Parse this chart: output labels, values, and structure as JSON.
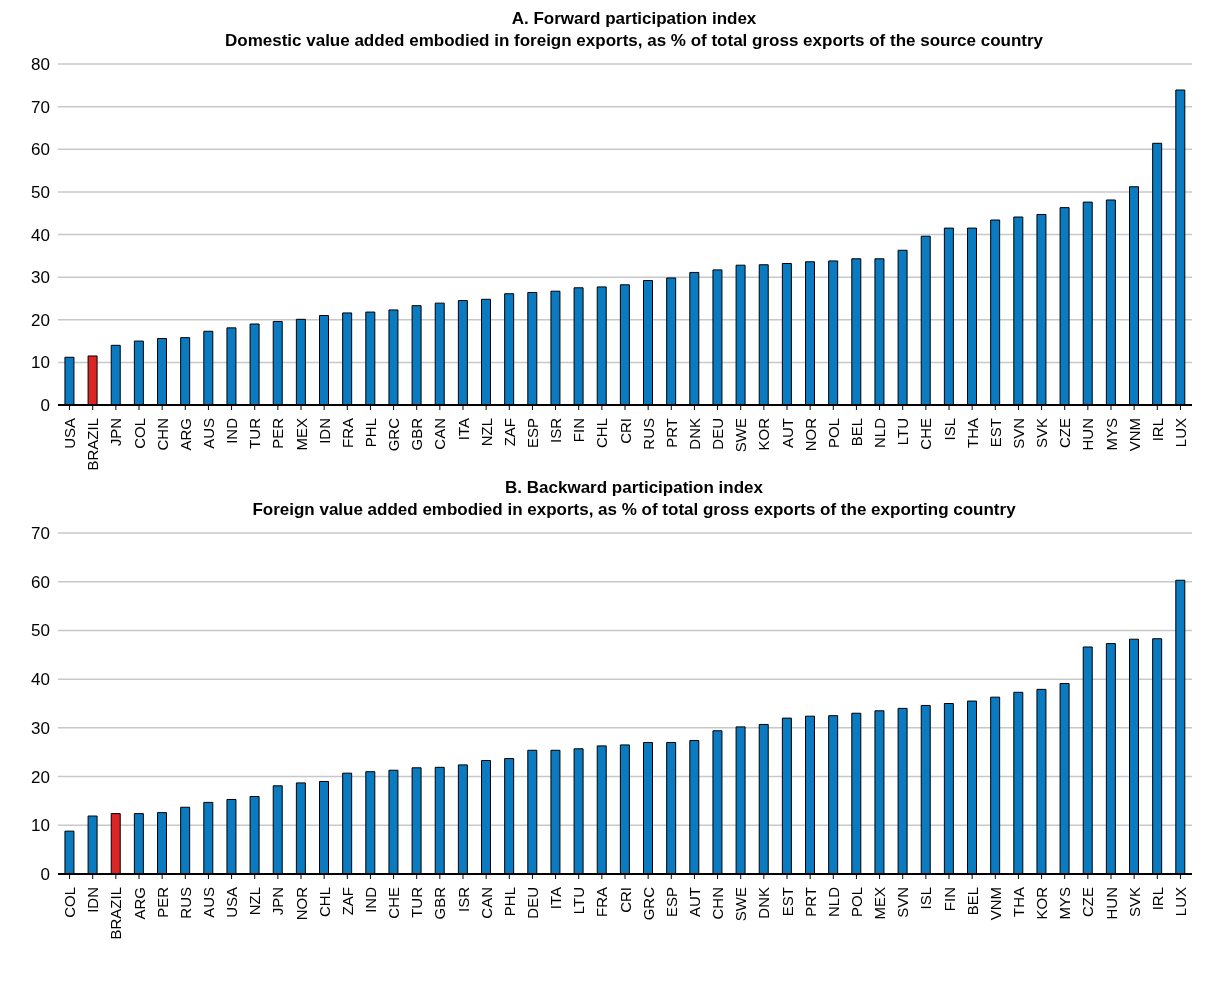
{
  "chart_data": [
    {
      "type": "bar",
      "title": "A. Forward participation index",
      "subtitle": "Domestic value added embodied in foreign exports, as % of total gross exports of the source country",
      "categories": [
        "USA",
        "BRAZIL",
        "JPN",
        "COL",
        "CHN",
        "ARG",
        "AUS",
        "IND",
        "TUR",
        "PER",
        "MEX",
        "IDN",
        "FRA",
        "PHL",
        "GRC",
        "GBR",
        "CAN",
        "ITA",
        "NZL",
        "ZAF",
        "ESP",
        "ISR",
        "FIN",
        "CHL",
        "CRI",
        "RUS",
        "PRT",
        "DNK",
        "DEU",
        "SWE",
        "KOR",
        "AUT",
        "NOR",
        "POL",
        "BEL",
        "NLD",
        "LTU",
        "CHE",
        "ISL",
        "THA",
        "EST",
        "SVN",
        "SVK",
        "CZE",
        "HUN",
        "MYS",
        "VNM",
        "IRL",
        "LUX"
      ],
      "values": [
        11.2,
        11.5,
        14,
        15,
        15.6,
        15.8,
        17.3,
        18.1,
        19,
        19.6,
        20.1,
        21,
        21.6,
        21.8,
        22.3,
        23.3,
        23.9,
        24.5,
        24.8,
        26.1,
        26.4,
        26.7,
        27.5,
        27.7,
        28.2,
        29.2,
        29.8,
        31.1,
        31.7,
        32.8,
        32.9,
        33.2,
        33.6,
        33.8,
        34.3,
        34.3,
        36.3,
        39.6,
        41.5,
        41.5,
        43.4,
        44.1,
        44.7,
        46.3,
        47.6,
        48.1,
        51.2,
        61.4,
        73.9
      ],
      "colors": [
        "#0a7bc1",
        "#dc2626",
        "#0a7bc1",
        "#0a7bc1",
        "#0a7bc1",
        "#0a7bc1",
        "#0a7bc1",
        "#0a7bc1",
        "#0a7bc1",
        "#0a7bc1",
        "#0a7bc1",
        "#0a7bc1",
        "#0a7bc1",
        "#0a7bc1",
        "#0a7bc1",
        "#0a7bc1",
        "#0a7bc1",
        "#0a7bc1",
        "#0a7bc1",
        "#0a7bc1",
        "#0a7bc1",
        "#0a7bc1",
        "#0a7bc1",
        "#0a7bc1",
        "#0a7bc1",
        "#0a7bc1",
        "#0a7bc1",
        "#0a7bc1",
        "#0a7bc1",
        "#0a7bc1",
        "#0a7bc1",
        "#0a7bc1",
        "#0a7bc1",
        "#0a7bc1",
        "#0a7bc1",
        "#0a7bc1",
        "#0a7bc1",
        "#0a7bc1",
        "#0a7bc1",
        "#0a7bc1",
        "#0a7bc1",
        "#0a7bc1",
        "#0a7bc1",
        "#0a7bc1",
        "#0a7bc1",
        "#0a7bc1",
        "#0a7bc1",
        "#0a7bc1",
        "#0a7bc1"
      ],
      "ylim": [
        0,
        80
      ],
      "yticks": [
        0,
        10,
        20,
        30,
        40,
        50,
        60,
        70,
        80
      ],
      "grid": "y",
      "legend": false
    },
    {
      "type": "bar",
      "title": "B. Backward participation index",
      "subtitle": "Foreign value added embodied in exports, as % of total gross exports of the exporting country",
      "categories": [
        "COL",
        "IDN",
        "BRAZIL",
        "ARG",
        "PER",
        "RUS",
        "AUS",
        "USA",
        "NZL",
        "JPN",
        "NOR",
        "CHL",
        "ZAF",
        "IND",
        "CHE",
        "TUR",
        "GBR",
        "ISR",
        "CAN",
        "PHL",
        "DEU",
        "ITA",
        "LTU",
        "FRA",
        "CRI",
        "GRC",
        "ESP",
        "AUT",
        "CHN",
        "SWE",
        "DNK",
        "EST",
        "PRT",
        "NLD",
        "POL",
        "MEX",
        "SVN",
        "ISL",
        "FIN",
        "BEL",
        "VNM",
        "THA",
        "KOR",
        "MYS",
        "CZE",
        "HUN",
        "SVK",
        "IRL",
        "LUX"
      ],
      "values": [
        8.8,
        11.9,
        12.4,
        12.4,
        12.6,
        13.7,
        14.7,
        15.3,
        15.9,
        18.1,
        18.7,
        19,
        20.7,
        21,
        21.3,
        21.8,
        21.9,
        22.4,
        23.3,
        23.7,
        25.4,
        25.4,
        25.7,
        26.3,
        26.5,
        27,
        27,
        27.4,
        29.4,
        30.2,
        30.7,
        32,
        32.4,
        32.5,
        33,
        33.5,
        34,
        34.6,
        35,
        35.5,
        36.3,
        37.3,
        37.9,
        39.1,
        46.6,
        47.3,
        48.2,
        48.3,
        60.3
      ],
      "colors": [
        "#0a7bc1",
        "#0a7bc1",
        "#dc2626",
        "#0a7bc1",
        "#0a7bc1",
        "#0a7bc1",
        "#0a7bc1",
        "#0a7bc1",
        "#0a7bc1",
        "#0a7bc1",
        "#0a7bc1",
        "#0a7bc1",
        "#0a7bc1",
        "#0a7bc1",
        "#0a7bc1",
        "#0a7bc1",
        "#0a7bc1",
        "#0a7bc1",
        "#0a7bc1",
        "#0a7bc1",
        "#0a7bc1",
        "#0a7bc1",
        "#0a7bc1",
        "#0a7bc1",
        "#0a7bc1",
        "#0a7bc1",
        "#0a7bc1",
        "#0a7bc1",
        "#0a7bc1",
        "#0a7bc1",
        "#0a7bc1",
        "#0a7bc1",
        "#0a7bc1",
        "#0a7bc1",
        "#0a7bc1",
        "#0a7bc1",
        "#0a7bc1",
        "#0a7bc1",
        "#0a7bc1",
        "#0a7bc1",
        "#0a7bc1",
        "#0a7bc1",
        "#0a7bc1",
        "#0a7bc1",
        "#0a7bc1",
        "#0a7bc1",
        "#0a7bc1",
        "#0a7bc1",
        "#0a7bc1"
      ],
      "ylim": [
        0,
        70
      ],
      "yticks": [
        0,
        10,
        20,
        30,
        40,
        50,
        60,
        70
      ],
      "grid": "y",
      "legend": false
    }
  ]
}
